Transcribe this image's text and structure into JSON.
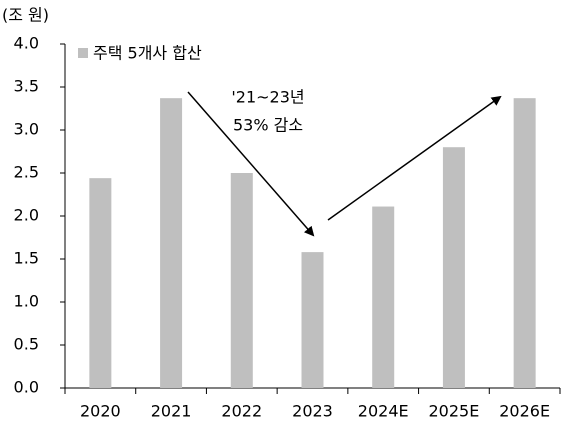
{
  "chart_data": {
    "type": "bar",
    "y_label": "(조 원)",
    "legend_label": "주택 5개사 합산",
    "annotation": [
      "'21~23년",
      "53% 감소"
    ],
    "categories": [
      "2020",
      "2021",
      "2022",
      "2023",
      "2024E",
      "2025E",
      "2026E"
    ],
    "values": [
      2.44,
      3.37,
      2.5,
      1.58,
      2.11,
      2.8,
      3.37
    ],
    "color": "#bfbfbf",
    "ylim": [
      0,
      4
    ],
    "yticks": [
      {
        "value": 0,
        "label": "0.0"
      },
      0.5,
      {
        "value": 1,
        "label": "1.0"
      },
      1.5,
      {
        "value": 2,
        "label": "2.0"
      },
      2.5,
      {
        "value": 3,
        "label": "3.0"
      },
      3.5,
      {
        "value": 4,
        "label": "4.0"
      }
    ],
    "grid": false
  }
}
